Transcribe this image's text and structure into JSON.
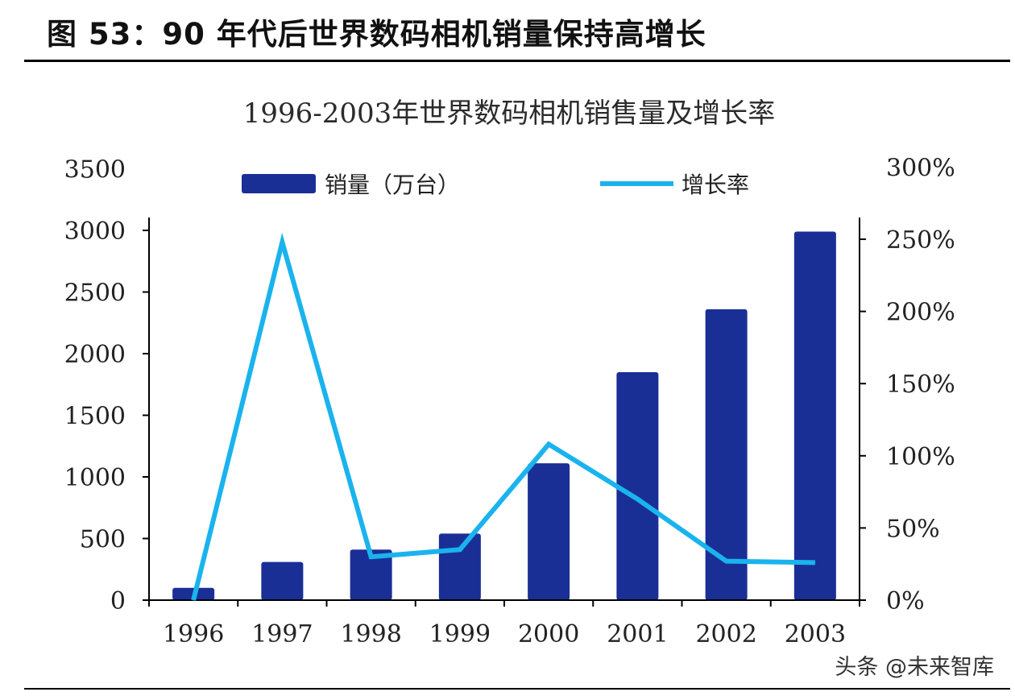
{
  "figure_title": "图 53：90 年代后世界数码相机销量保持高增长",
  "watermark": "头条 @未来智库",
  "colors": {
    "bar": "#1a2f96",
    "line": "#1ab3ee",
    "axis": "#000000"
  },
  "chart_data": {
    "type": "bar",
    "title": "1996-2003年世界数码相机销售量及增长率",
    "categories": [
      "1996",
      "1997",
      "1998",
      "1999",
      "2000",
      "2001",
      "2002",
      "2003"
    ],
    "series": [
      {
        "name": "销量（万台）",
        "type": "bar",
        "axis": "left",
        "values": [
          100,
          310,
          410,
          540,
          1110,
          1850,
          2360,
          2990
        ]
      },
      {
        "name": "增长率",
        "type": "line",
        "axis": "right",
        "values": [
          0,
          248,
          30,
          35,
          108,
          70,
          27,
          26
        ]
      }
    ],
    "y_left": {
      "lim": [
        0,
        3500
      ],
      "ticks": [
        "0",
        "500",
        "1000",
        "1500",
        "2000",
        "2500",
        "3000",
        "3500"
      ]
    },
    "y_right": {
      "lim": [
        0,
        300
      ],
      "ticks": [
        "0%",
        "50%",
        "100%",
        "150%",
        "200%",
        "250%",
        "300%"
      ]
    },
    "legend_position": "top",
    "grid": false
  }
}
